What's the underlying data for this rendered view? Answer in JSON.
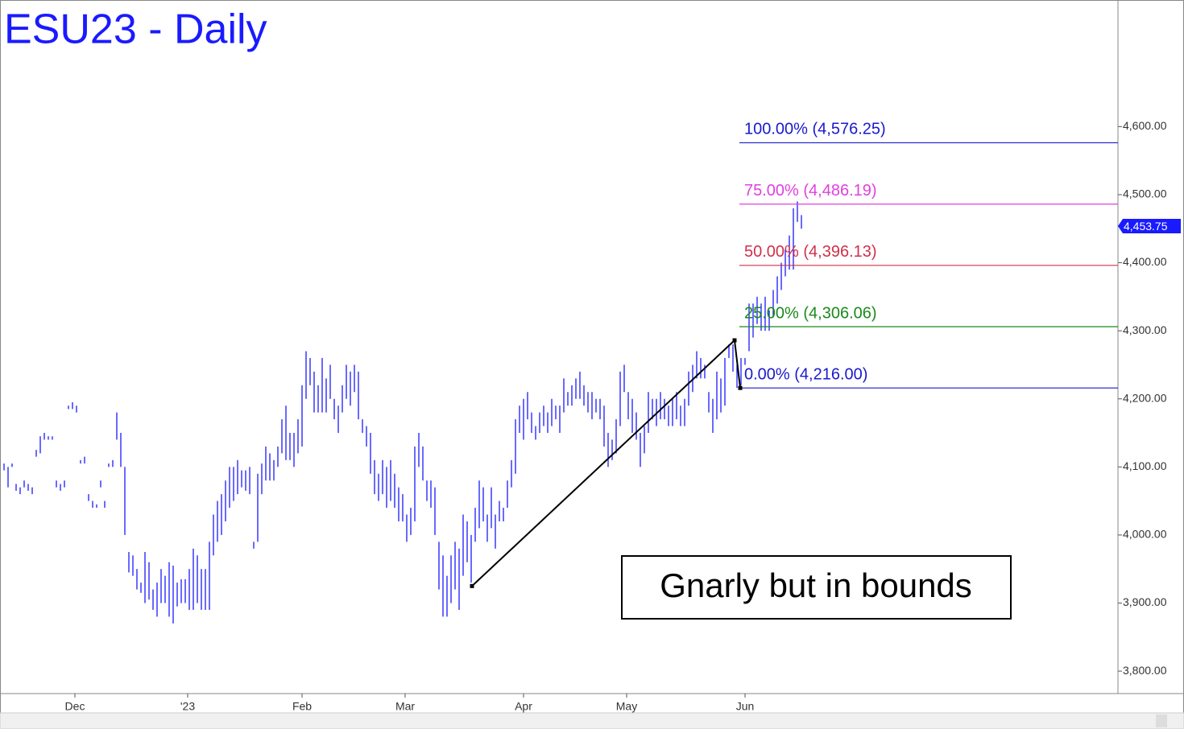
{
  "chart_data": {
    "type": "ohlc",
    "title": "ESU23 - Daily",
    "color": "#1a1aff",
    "xlim": [
      -1,
      276.6
    ],
    "ylim": [
      3767,
      4786
    ],
    "xticks": [
      {
        "value": 17.6,
        "label": "Dec"
      },
      {
        "value": 45.6,
        "label": "'23"
      },
      {
        "value": 74,
        "label": "Feb"
      },
      {
        "value": 99.6,
        "label": "Mar"
      },
      {
        "value": 129,
        "label": "Apr"
      },
      {
        "value": 154.6,
        "label": "May"
      },
      {
        "value": 184,
        "label": "Jun"
      }
    ],
    "yticks": [
      {
        "value": 3800,
        "label": "3,800.00"
      },
      {
        "value": 3900,
        "label": "3,900.00"
      },
      {
        "value": 4000,
        "label": "4,000.00"
      },
      {
        "value": 4100,
        "label": "4,100.00"
      },
      {
        "value": 4200,
        "label": "4,200.00"
      },
      {
        "value": 4300,
        "label": "4,300.00"
      },
      {
        "value": 4400,
        "label": "4,400.00"
      },
      {
        "value": 4500,
        "label": "4,500.00"
      },
      {
        "value": 4600,
        "label": "4,600.00"
      }
    ],
    "high": [
      4105,
      4100,
      4105,
      4075,
      4070,
      4080,
      4075,
      4070,
      4125,
      4145,
      4150,
      4145,
      4145,
      4080,
      4075,
      4080,
      4190,
      4195,
      4190,
      4110,
      4115,
      4060,
      4050,
      4045,
      4080,
      4050,
      4105,
      4110,
      4180,
      4150,
      4100,
      3975,
      3970,
      3950,
      3930,
      3975,
      3960,
      3920,
      3930,
      3950,
      3940,
      3960,
      3955,
      3930,
      3935,
      3935,
      3950,
      3980,
      3970,
      3950,
      3950,
      3990,
      4030,
      4050,
      4060,
      4080,
      4100,
      4100,
      4110,
      4095,
      4095,
      4100,
      3990,
      4090,
      4105,
      4130,
      4120,
      4110,
      4130,
      4170,
      4190,
      4150,
      4150,
      4170,
      4220,
      4270,
      4260,
      4240,
      4220,
      4260,
      4230,
      4250,
      4200,
      4190,
      4220,
      4250,
      4240,
      4250,
      4240,
      4170,
      4160,
      4150,
      4110,
      4090,
      4110,
      4100,
      4110,
      4090,
      4070,
      4060,
      4030,
      4040,
      4130,
      4150,
      4130,
      4080,
      4080,
      4070,
      3990,
      3970,
      3940,
      3970,
      3990,
      3980,
      4030,
      4020,
      4000,
      4040,
      4080,
      4070,
      4030,
      4070,
      4030,
      4050,
      4040,
      4080,
      4110,
      4170,
      4190,
      4200,
      4210,
      4180,
      4160,
      4180,
      4190,
      4180,
      4200,
      4190,
      4190,
      4230,
      4210,
      4220,
      4230,
      4240,
      4220,
      4210,
      4210,
      4200,
      4200,
      4190,
      4150,
      4140,
      4170,
      4240,
      4250,
      4210,
      4200,
      4180,
      4150,
      4160,
      4210,
      4200,
      4200,
      4210,
      4200,
      4190,
      4200,
      4210,
      4190,
      4200,
      4240,
      4250,
      4270,
      4260,
      4250,
      4210,
      4200,
      4240,
      4230,
      4260,
      4280,
      4280,
      4250,
      4260,
      4260,
      4340,
      4340,
      4350,
      4340,
      4350,
      4330,
      4360,
      4380,
      4400,
      4420,
      4440,
      4480,
      4490,
      4470
    ],
    "low": [
      4095,
      4070,
      4100,
      4065,
      4060,
      4070,
      4065,
      4060,
      4115,
      4120,
      4140,
      4140,
      4140,
      4070,
      4065,
      4070,
      4185,
      4185,
      4180,
      4105,
      4105,
      4050,
      4040,
      4040,
      4070,
      4040,
      4100,
      4100,
      4140,
      4100,
      4000,
      3945,
      3940,
      3920,
      3915,
      3900,
      3905,
      3890,
      3880,
      3900,
      3900,
      3880,
      3870,
      3895,
      3900,
      3900,
      3890,
      3890,
      3900,
      3890,
      3890,
      3890,
      3970,
      3990,
      4000,
      4020,
      4040,
      4050,
      4060,
      4070,
      4065,
      4060,
      3980,
      3990,
      4060,
      4080,
      4080,
      4080,
      4100,
      4120,
      4110,
      4110,
      4100,
      4120,
      4130,
      4200,
      4220,
      4180,
      4180,
      4180,
      4180,
      4200,
      4170,
      4150,
      4180,
      4200,
      4190,
      4210,
      4170,
      4150,
      4130,
      4090,
      4060,
      4050,
      4060,
      4040,
      4050,
      4040,
      4020,
      4020,
      3990,
      4000,
      4020,
      4100,
      4080,
      4050,
      4040,
      4000,
      3920,
      3880,
      3880,
      3900,
      3920,
      3890,
      3940,
      3960,
      3930,
      3990,
      4010,
      4020,
      3990,
      4010,
      3980,
      4020,
      4020,
      4040,
      4070,
      4090,
      4150,
      4140,
      4170,
      4150,
      4140,
      4150,
      4160,
      4150,
      4160,
      4170,
      4150,
      4180,
      4190,
      4190,
      4200,
      4200,
      4190,
      4180,
      4170,
      4180,
      4170,
      4130,
      4100,
      4110,
      4120,
      4160,
      4210,
      4170,
      4150,
      4140,
      4100,
      4120,
      4150,
      4170,
      4160,
      4170,
      4170,
      4160,
      4160,
      4170,
      4160,
      4160,
      4190,
      4210,
      4230,
      4230,
      4230,
      4180,
      4150,
      4170,
      4180,
      4190,
      4260,
      4240,
      4216,
      4220,
      4250,
      4270,
      4290,
      4310,
      4300,
      4300,
      4300,
      4320,
      4340,
      4360,
      4380,
      4390,
      4390,
      4460,
      4450
    ],
    "trendline": {
      "x": [
        116.2,
        181.4,
        182.8
      ],
      "y": [
        3925,
        4286,
        4216
      ],
      "color": "#000000"
    },
    "levels": [
      {
        "label": "100.00% (4,576.25)",
        "value": 4576.25,
        "color": "#1a1acc"
      },
      {
        "label": "75.00% (4,486.19)",
        "value": 4486.19,
        "color": "#e040e0"
      },
      {
        "label": "50.00% (4,396.13)",
        "value": 4396.13,
        "color": "#d0304a"
      },
      {
        "label": "25.00% (4,306.06)",
        "value": 4306.06,
        "color": "#1a8a1a"
      },
      {
        "label": "0.00% (4,216.00)",
        "value": 4216.0,
        "color": "#1a1acc"
      }
    ],
    "levels_start_x": 182.6,
    "last_price": {
      "value": 4453.75,
      "label": "4,453.75"
    },
    "annotation": "Gnarly but in bounds"
  }
}
